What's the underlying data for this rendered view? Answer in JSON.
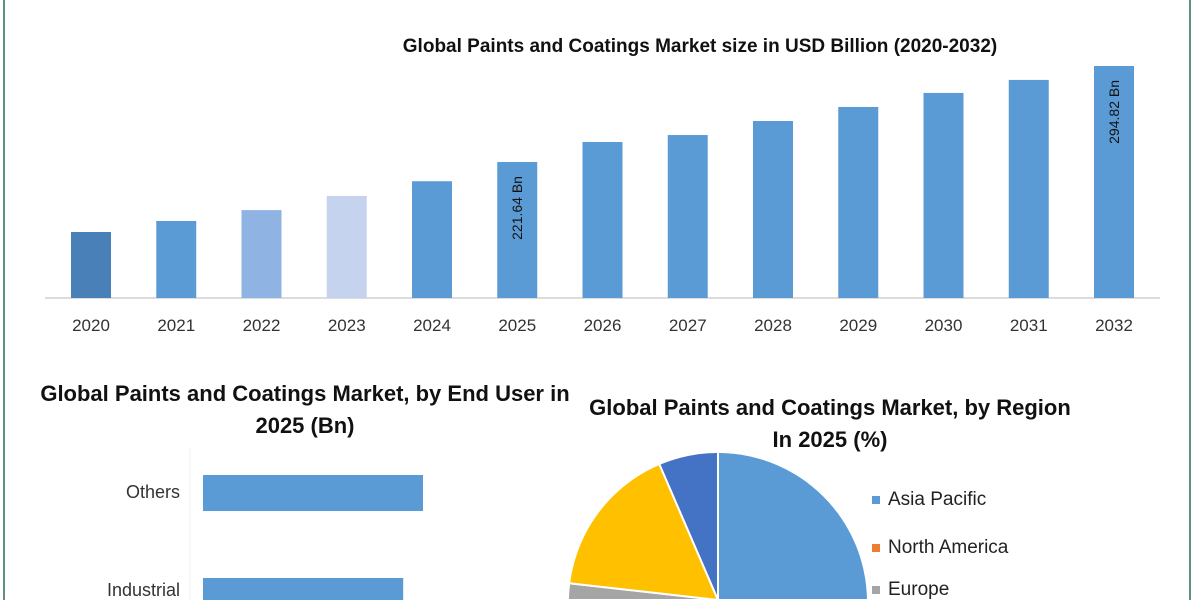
{
  "chart_data": [
    {
      "type": "bar",
      "title": "Global Paints and Coatings Market size in USD Billion (2020-2032)",
      "categories": [
        "2020",
        "2021",
        "2022",
        "2023",
        "2024",
        "2025",
        "2026",
        "2027",
        "2028",
        "2029",
        "2030",
        "2031",
        "2032"
      ],
      "values": [
        168.3,
        176.7,
        185.0,
        195.8,
        207.0,
        221.64,
        236.9,
        242.2,
        252.9,
        263.6,
        274.3,
        284.2,
        294.82
      ],
      "data_labels": {
        "2025": "221.64 Bn",
        "2032": "294.82 Bn"
      },
      "colors": [
        "#4a80b8",
        "#5b9bd5",
        "#8fb4e3",
        "#c5d3ee",
        "#5b9bd5",
        "#5b9bd5",
        "#5b9bd5",
        "#5b9bd5",
        "#5b9bd5",
        "#5b9bd5",
        "#5b9bd5",
        "#5b9bd5",
        "#5b9bd5"
      ],
      "xlabel": "",
      "ylabel": "",
      "ylim": [
        118,
        300
      ],
      "grid": false
    },
    {
      "type": "bar",
      "orientation": "horizontal",
      "title": "Global Paints and Coatings Market, by End User in 2025 (Bn)",
      "categories": [
        "Others",
        "Industrial"
      ],
      "values": [
        100,
        91
      ],
      "color": "#5b9bd5",
      "grid": false
    },
    {
      "type": "pie",
      "title": "Global Paints and Coatings Market, by Region In 2025 (%)",
      "slices": [
        {
          "name": "Asia Pacific",
          "value": 45,
          "color": "#5b9bd5"
        },
        {
          "name": "North America",
          "value": 20,
          "color": "#ed7d31"
        },
        {
          "name": "Europe",
          "value": 12,
          "color": "#a5a5a5"
        },
        {
          "value": 16.6,
          "color": "#ffc000"
        },
        {
          "value": 6.4,
          "color": "#4472c4"
        }
      ],
      "legend_position": "right"
    }
  ]
}
